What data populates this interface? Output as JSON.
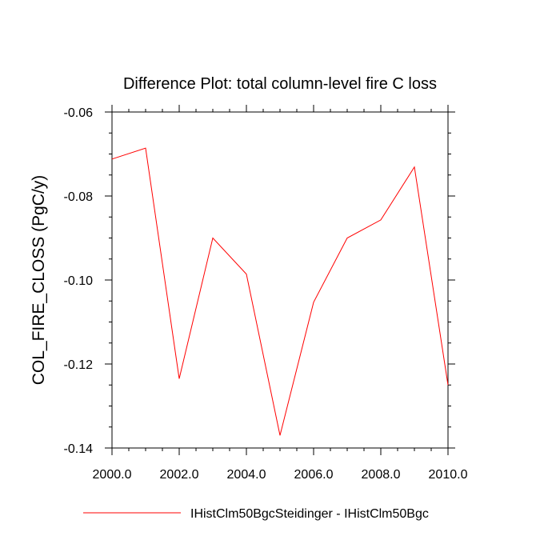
{
  "chart_data": {
    "type": "line",
    "title": "Difference Plot: total column-level fire C loss",
    "xlabel": "",
    "ylabel": "COL_FIRE_CLOSS  (PgC/y)",
    "xlim": [
      2000,
      2010
    ],
    "ylim": [
      -0.14,
      -0.06
    ],
    "x_ticks": [
      2000,
      2002,
      2004,
      2006,
      2008,
      2010
    ],
    "x_tick_labels": [
      "2000.0",
      "2002.0",
      "2004.0",
      "2006.0",
      "2008.0",
      "2010.0"
    ],
    "y_ticks": [
      -0.06,
      -0.08,
      -0.1,
      -0.12,
      -0.14
    ],
    "y_tick_labels": [
      "-0.06",
      "-0.08",
      "-0.10",
      "-0.12",
      "-0.14"
    ],
    "grid": false,
    "legend_position": "bottom",
    "series": [
      {
        "name": "IHistClm50BgcSteidinger - IHistClm50Bgc",
        "color": "#ff0000",
        "x": [
          2000,
          2001,
          2002,
          2003,
          2004,
          2005,
          2006,
          2007,
          2008,
          2009,
          2010
        ],
        "y": [
          -0.0712,
          -0.0686,
          -0.1235,
          -0.09,
          -0.0986,
          -0.137,
          -0.1053,
          -0.09,
          -0.0857,
          -0.0731,
          -0.125
        ]
      }
    ]
  }
}
